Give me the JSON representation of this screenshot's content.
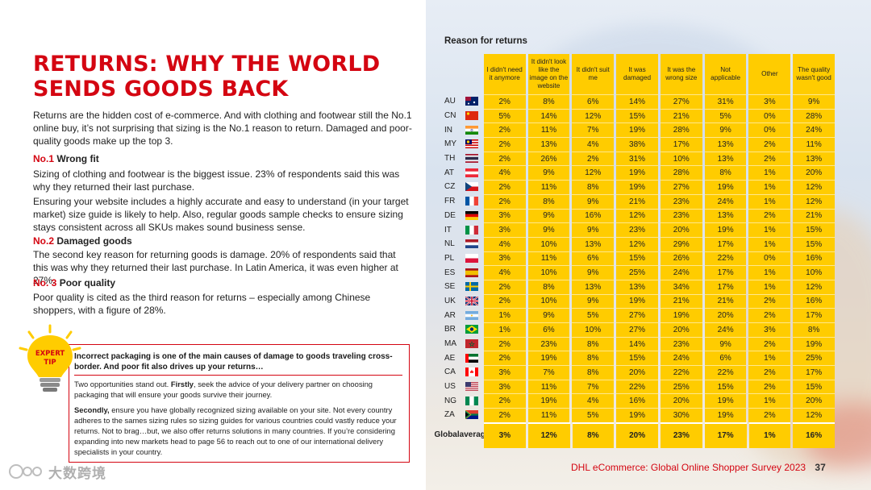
{
  "left": {
    "title_line1": "RETURNS: WHY THE WORLD",
    "title_line2": "SENDS GOODS BACK",
    "intro": "Returns are the hidden cost of e-commerce. And with clothing and footwear still the No.1 online buy, it’s not surprising that sizing is the No.1 reason to return. Damaged and poor-quality goods make up the top 3.",
    "sections": [
      {
        "num": "No.1",
        "heading": "Wrong fit",
        "paras": [
          "Sizing of clothing and footwear is the biggest issue. 23% of respondents said this was why they returned their last purchase.",
          "Ensuring your website includes a highly accurate and easy to understand (in your target market) size guide is likely to help. Also, regular goods sample checks to ensure sizing stays consistent across all SKUs makes sound business sense."
        ]
      },
      {
        "num": "No.2",
        "heading": "Damaged goods",
        "paras": [
          "The second key reason for returning goods is damage. 20% of respondents said that this was why they returned their last purchase. In Latin America, it was even higher at 27%."
        ]
      },
      {
        "num": "No. 3",
        "heading": "Poor quality",
        "paras": [
          "Poor quality is cited as the third reason for returns – especially among Chinese shoppers, with a figure of 28%."
        ]
      }
    ],
    "expert_tip": {
      "badge_line1": "EXPERT",
      "badge_line2": "TIP",
      "lead": "Incorrect packaging is one of the main causes of damage to goods traveling cross-border. And poor fit also drives up your returns…",
      "p1_pre": "Two opportunities stand out. ",
      "p1_bold": "Firstly",
      "p1_post": ", seek the advice of your delivery partner on choosing packaging that will ensure your goods survive their journey.",
      "p2_bold": "Secondly,",
      "p2_post": " ensure you have globally recognized sizing available on your site. Not every country adheres to the sames sizing rules so sizing guides for various countries could vastly reduce your returns. Not to brag…but, we also offer returns solutions in many countries. If you’re considering expanding into new markets head to page 56 to reach out to one of our international delivery specialists in your country."
    },
    "watermark": "大数跨境"
  },
  "table": {
    "title": "Reason for returns",
    "columns": [
      "I didn't need it anymore",
      "It didn't look like the image on the website",
      "It didn't suit me",
      "It was damaged",
      "It was the wrong size",
      "Not applicable",
      "Other",
      "The quality wasn't good"
    ],
    "rows": [
      {
        "code": "AU",
        "values": [
          "2%",
          "8%",
          "6%",
          "14%",
          "27%",
          "31%",
          "3%",
          "9%"
        ]
      },
      {
        "code": "CN",
        "values": [
          "5%",
          "14%",
          "12%",
          "15%",
          "21%",
          "5%",
          "0%",
          "28%"
        ]
      },
      {
        "code": "IN",
        "values": [
          "2%",
          "11%",
          "7%",
          "19%",
          "28%",
          "9%",
          "0%",
          "24%"
        ]
      },
      {
        "code": "MY",
        "values": [
          "2%",
          "13%",
          "4%",
          "38%",
          "17%",
          "13%",
          "2%",
          "11%"
        ]
      },
      {
        "code": "TH",
        "values": [
          "2%",
          "26%",
          "2%",
          "31%",
          "10%",
          "13%",
          "2%",
          "13%"
        ]
      },
      {
        "code": "AT",
        "values": [
          "4%",
          "9%",
          "12%",
          "19%",
          "28%",
          "8%",
          "1%",
          "20%"
        ]
      },
      {
        "code": "CZ",
        "values": [
          "2%",
          "11%",
          "8%",
          "19%",
          "27%",
          "19%",
          "1%",
          "12%"
        ]
      },
      {
        "code": "FR",
        "values": [
          "2%",
          "8%",
          "9%",
          "21%",
          "23%",
          "24%",
          "1%",
          "12%"
        ]
      },
      {
        "code": "DE",
        "values": [
          "3%",
          "9%",
          "16%",
          "12%",
          "23%",
          "13%",
          "2%",
          "21%"
        ]
      },
      {
        "code": "IT",
        "values": [
          "3%",
          "9%",
          "9%",
          "23%",
          "20%",
          "19%",
          "1%",
          "15%"
        ]
      },
      {
        "code": "NL",
        "values": [
          "4%",
          "10%",
          "13%",
          "12%",
          "29%",
          "17%",
          "1%",
          "15%"
        ]
      },
      {
        "code": "PL",
        "values": [
          "3%",
          "11%",
          "6%",
          "15%",
          "26%",
          "22%",
          "0%",
          "16%"
        ]
      },
      {
        "code": "ES",
        "values": [
          "4%",
          "10%",
          "9%",
          "25%",
          "24%",
          "17%",
          "1%",
          "10%"
        ]
      },
      {
        "code": "SE",
        "values": [
          "2%",
          "8%",
          "13%",
          "13%",
          "34%",
          "17%",
          "1%",
          "12%"
        ]
      },
      {
        "code": "UK",
        "values": [
          "2%",
          "10%",
          "9%",
          "19%",
          "21%",
          "21%",
          "2%",
          "16%"
        ]
      },
      {
        "code": "AR",
        "values": [
          "1%",
          "9%",
          "5%",
          "27%",
          "19%",
          "20%",
          "2%",
          "17%"
        ]
      },
      {
        "code": "BR",
        "values": [
          "1%",
          "6%",
          "10%",
          "27%",
          "20%",
          "24%",
          "3%",
          "8%"
        ]
      },
      {
        "code": "MA",
        "values": [
          "2%",
          "23%",
          "8%",
          "14%",
          "23%",
          "9%",
          "2%",
          "19%"
        ]
      },
      {
        "code": "AE",
        "values": [
          "2%",
          "19%",
          "8%",
          "15%",
          "24%",
          "6%",
          "1%",
          "25%"
        ]
      },
      {
        "code": "CA",
        "values": [
          "3%",
          "7%",
          "8%",
          "20%",
          "22%",
          "22%",
          "2%",
          "17%"
        ]
      },
      {
        "code": "US",
        "values": [
          "3%",
          "11%",
          "7%",
          "22%",
          "25%",
          "15%",
          "2%",
          "15%"
        ]
      },
      {
        "code": "NG",
        "values": [
          "2%",
          "19%",
          "4%",
          "16%",
          "20%",
          "19%",
          "1%",
          "20%"
        ]
      },
      {
        "code": "ZA",
        "values": [
          "2%",
          "11%",
          "5%",
          "19%",
          "30%",
          "19%",
          "2%",
          "12%"
        ]
      }
    ],
    "average": {
      "label_line1": "Global",
      "label_line2": "average",
      "values": [
        "3%",
        "12%",
        "8%",
        "20%",
        "23%",
        "17%",
        "1%",
        "16%"
      ]
    }
  },
  "footer": {
    "text": "DHL eCommerce: Global Online Shopper Survey 2023",
    "page": "37"
  },
  "colors": {
    "dhl_red": "#d40511",
    "dhl_yellow": "#ffcc00"
  }
}
